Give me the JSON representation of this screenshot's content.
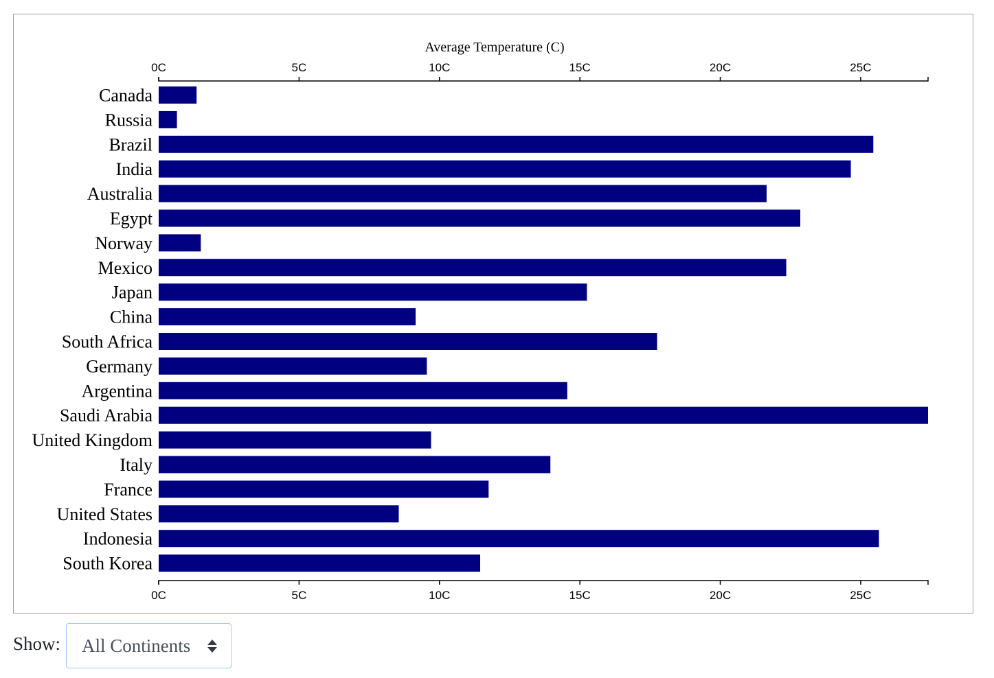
{
  "chart_data": {
    "type": "bar",
    "orientation": "horizontal",
    "title": "Average Temperature (C)",
    "xlim": [
      0,
      27.4
    ],
    "ticks": [
      {
        "value": 0,
        "label": "0C"
      },
      {
        "value": 5,
        "label": "5C"
      },
      {
        "value": 10,
        "label": "10C"
      },
      {
        "value": 15,
        "label": "15C"
      },
      {
        "value": 20,
        "label": "20C"
      },
      {
        "value": 25,
        "label": "25C"
      }
    ],
    "categories": [
      "Canada",
      "Russia",
      "Brazil",
      "India",
      "Australia",
      "Egypt",
      "Norway",
      "Mexico",
      "Japan",
      "China",
      "South Africa",
      "Germany",
      "Argentina",
      "Saudi Arabia",
      "United Kingdom",
      "Italy",
      "France",
      "United States",
      "Indonesia",
      "South Korea"
    ],
    "values": [
      1.35,
      0.65,
      25.45,
      24.65,
      21.65,
      22.85,
      1.5,
      22.35,
      15.25,
      9.15,
      17.75,
      9.55,
      14.55,
      27.4,
      9.7,
      13.95,
      11.75,
      8.55,
      25.65,
      11.45
    ],
    "grid": false,
    "colors": {
      "bar": "#000080",
      "axis": "#000000"
    }
  },
  "controls": {
    "show_label": "Show:",
    "select_value": "All Continents",
    "select_icon": "sort-arrows-icon"
  }
}
